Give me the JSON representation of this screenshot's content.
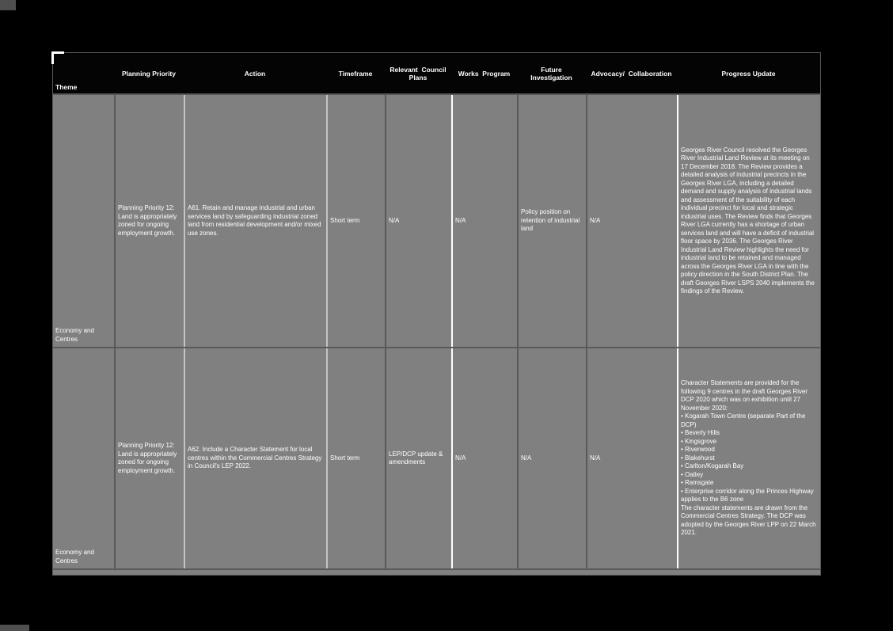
{
  "table": {
    "columns": [
      "Theme",
      "Planning Priority",
      "Action",
      "Timeframe",
      "Relevant  Council Plans",
      "Works  Program",
      "Future Investigation",
      "Advocacy/  Collaboration",
      "Progress Update"
    ],
    "rows": [
      {
        "theme": "Economy and Centres",
        "planning_priority": "Planning Priority 12: Land is appropriately zoned for ongoing employment growth.",
        "action": "A61. Retain and manage industrial and urban services land by safeguarding industrial zoned land from residential development and/or mixed use zones.",
        "timeframe": "Short term",
        "relevant_council_plans": "N/A",
        "works_program": "N/A",
        "future_investigation": "Policy position on retention of industrial land",
        "advocacy_collaboration": "N/A",
        "progress_update": "Georges River Council resolved the Georges River Industrial Land Review at its meeting on 17 December 2018. The Review provides a detailed analysis of industrial precincts in the Georges River LGA, including a detailed demand and supply analysis of industrial lands and assessment of the suitability of each individual precinct for local and strategic industrial uses. The Review finds that Georges River LGA currently has a shortage of urban services land and will have a deficit of industrial floor space by 2036. The Georges River Industrial Land Review highlights the need for industrial land to be retained and managed across the Georges River LGA in line with the policy direction in the South District Plan. The draft Georges River LSPS 2040 implements the findings of the Review."
      },
      {
        "theme": "Economy and Centres",
        "planning_priority": "Planning Priority 12: Land is appropriately zoned for ongoing employment growth.",
        "action": "A62. Include a Character Statement for local centres within the Commercial Centres Strategy in Council's LEP 2022.",
        "timeframe": "Short term",
        "relevant_council_plans": "LEP/DCP update & amendments",
        "works_program": "N/A",
        "future_investigation": "N/A",
        "advocacy_collaboration": "N/A",
        "progress_update": "Character Statements are provided for the following 9 centres in the draft Georges River DCP 2020 which was on exhibition until 27 November 2020:\n• Kogarah Town Centre (separate Part of the DCP)\n• Beverly Hills\n• Kingsgrove\n• Riverwood\n• Blakehurst\n• Carlton/Kogarah Bay\n• Oatley\n• Ramsgate\n• Enterprise corridor along the Princes Highway applies to the B6 zone\nThe character statements are drawn from the Commercial Centres Strategy. The DCP was adopted by the Georges River LPP on 22 March 2021."
      }
    ]
  }
}
